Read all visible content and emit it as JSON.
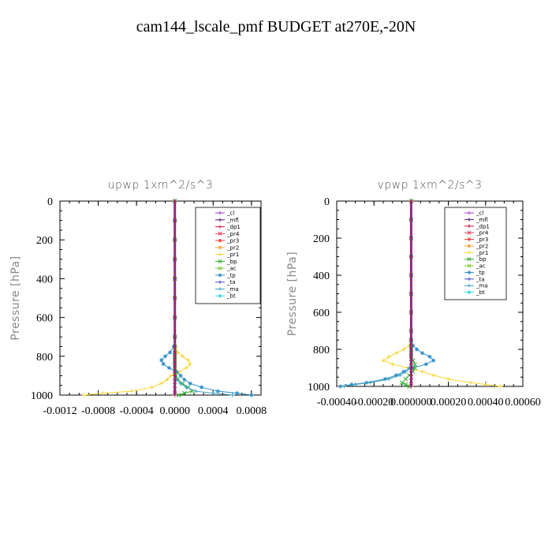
{
  "title": "cam144_lscale_pmf  BUDGET at270E,-20N",
  "colors": {
    "cl": "#9b30c8",
    "mfl": "#5a1a78",
    "dp1": "#c81e3c",
    "pr4": "#e0405a",
    "pr3": "#f04040",
    "pr2": "#f5a040",
    "pr1": "#f5d530",
    "bp": "#30b030",
    "ac": "#80c840",
    "tp": "#3090c8",
    "ta": "#5050d0",
    "ma": "#40a0c0",
    "bt": "#30d8e0"
  },
  "chart_data": [
    {
      "type": "line",
      "title": "upwp   1xm^2/s^3",
      "ylabel": "Pressure  [hPa]",
      "xlim": [
        -0.0012,
        0.0009
      ],
      "ylim": [
        1000,
        0
      ],
      "xticks": [
        -0.0012,
        -0.0008,
        -0.0004,
        0.0,
        0.0004,
        0.0008
      ],
      "xtick_labels": [
        "-0.0012",
        "-0.0008",
        "-0.0004",
        "0.0000",
        "0.0004",
        "0.0008"
      ],
      "yticks": [
        0,
        200,
        400,
        600,
        800,
        1000
      ],
      "ytick_labels": [
        "0",
        "200",
        "400",
        "600",
        "800",
        "1000"
      ],
      "legend": [
        "_cl",
        "_mfl",
        "_dp1",
        "_pr4",
        "_pr3",
        "_pr2",
        "_pr1",
        "_bp",
        "_ac",
        "_tp",
        "_ta",
        "_ma",
        "_bt"
      ],
      "legend_position": "top-right",
      "y": [
        0,
        100,
        200,
        300,
        400,
        500,
        600,
        700,
        750,
        780,
        800,
        820,
        840,
        860,
        880,
        900,
        920,
        940,
        960,
        980,
        990,
        1000
      ],
      "series": [
        {
          "name": "_pr1",
          "key": "pr1",
          "values": [
            0,
            0,
            0,
            0,
            0,
            0,
            0,
            0,
            1e-05,
            3e-05,
            8e-05,
            0.00014,
            0.00016,
            0.00012,
            5e-05,
            -4e-05,
            -8e-05,
            -0.00014,
            -0.00024,
            -0.00045,
            -0.00075,
            -0.00095
          ]
        },
        {
          "name": "_tp",
          "key": "tp",
          "values": [
            0,
            0,
            0,
            0,
            0,
            0,
            0,
            0,
            -1e-05,
            -5e-05,
            -0.0001,
            -0.00014,
            -0.00012,
            -6e-05,
            2e-05,
            6e-05,
            0.0001,
            0.00016,
            0.00028,
            0.00045,
            0.00065,
            0.0008
          ]
        },
        {
          "name": "_bp",
          "key": "bp",
          "values": [
            0,
            0,
            0,
            0,
            0,
            0,
            0,
            0,
            0,
            0,
            0,
            0,
            0,
            0,
            0,
            1e-05,
            3e-05,
            8e-05,
            0.00014,
            0.00018,
            0.0001,
            4e-05
          ]
        },
        {
          "name": "_ma",
          "key": "ma",
          "values": [
            0,
            0,
            0,
            0,
            0,
            0,
            0,
            0,
            0,
            0,
            0,
            0,
            0,
            0,
            0,
            0,
            2e-05,
            6e-05,
            0.00012,
            0.00022,
            0.0004,
            0.0006
          ]
        },
        {
          "name": "_dp1",
          "key": "dp1",
          "values": [
            0,
            0,
            0,
            0,
            0,
            0,
            0,
            0,
            0,
            0,
            0,
            0,
            0,
            0,
            0,
            0,
            0,
            0,
            0,
            0,
            0,
            0
          ]
        }
      ]
    },
    {
      "type": "line",
      "title": "vpwp   1xm^2/s^3",
      "ylabel": "Pressure  [hPa]",
      "xlim": [
        -0.0004,
        0.0006
      ],
      "ylim": [
        1000,
        0
      ],
      "xticks": [
        -0.0004,
        -0.0002,
        0.0,
        0.0002,
        0.0004,
        0.0006
      ],
      "xtick_labels": [
        "-0.00040",
        "-0.00020",
        "0.000000",
        "0.00020",
        "0.00040",
        "0.00060"
      ],
      "yticks": [
        0,
        200,
        400,
        600,
        800,
        1000
      ],
      "ytick_labels": [
        "0",
        "200",
        "400",
        "600",
        "800",
        "1000"
      ],
      "legend": [
        "_cl",
        "_mfl",
        "_dp1",
        "_pr4",
        "_pr3",
        "_pr2",
        "_pr1",
        "_bp",
        "_ac",
        "_tp",
        "_ta",
        "_ma",
        "_bt"
      ],
      "legend_position": "top-right",
      "y": [
        0,
        100,
        200,
        300,
        400,
        500,
        600,
        700,
        750,
        780,
        800,
        820,
        840,
        860,
        880,
        900,
        920,
        940,
        960,
        980,
        990,
        1000
      ],
      "series": [
        {
          "name": "_pr1",
          "key": "pr1",
          "values": [
            0,
            0,
            0,
            0,
            0,
            0,
            0,
            0,
            0,
            -1e-05,
            -4e-05,
            -8e-05,
            -0.00012,
            -0.00015,
            -0.0001,
            -2e-05,
            6e-05,
            0.00012,
            0.0002,
            0.00032,
            0.0004,
            0.00048
          ]
        },
        {
          "name": "_tp",
          "key": "tp",
          "values": [
            0,
            0,
            0,
            0,
            0,
            0,
            0,
            0,
            0,
            1e-05,
            3e-05,
            6e-05,
            0.0001,
            0.00012,
            8e-05,
            1e-05,
            -4e-05,
            -8e-05,
            -0.00014,
            -0.00024,
            -0.00032,
            -0.00038
          ]
        },
        {
          "name": "_ma",
          "key": "ma",
          "values": [
            0,
            0,
            0,
            0,
            0,
            0,
            0,
            0,
            0,
            0,
            0,
            0,
            0,
            0,
            0,
            -1e-05,
            -3e-05,
            -6e-05,
            -0.00012,
            -0.00022,
            -0.0003,
            -0.00036
          ]
        },
        {
          "name": "_bp",
          "key": "bp",
          "values": [
            0,
            0,
            0,
            0,
            0,
            0,
            0,
            0,
            0,
            0,
            0,
            0,
            0,
            1e-05,
            2e-05,
            2e-05,
            1e-05,
            -1e-05,
            -3e-05,
            -5e-05,
            -3e-05,
            -1e-05
          ]
        },
        {
          "name": "_dp1",
          "key": "dp1",
          "values": [
            0,
            0,
            0,
            0,
            0,
            0,
            0,
            0,
            0,
            0,
            0,
            0,
            0,
            0,
            0,
            0,
            0,
            0,
            0,
            0,
            0,
            0
          ]
        }
      ]
    }
  ]
}
